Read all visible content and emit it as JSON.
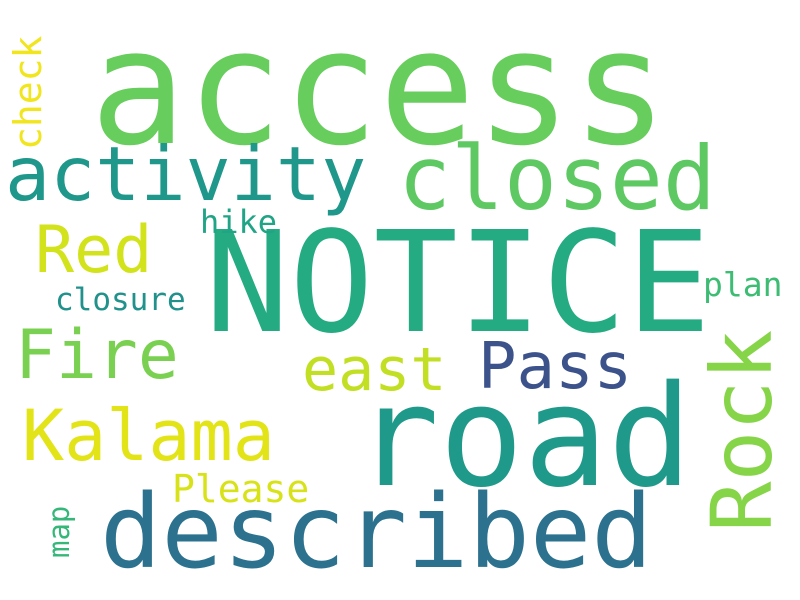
{
  "words": {
    "access": {
      "text": "access",
      "color": "#67cd5c"
    },
    "notice": {
      "text": "NOTICE",
      "color": "#25ab82"
    },
    "road": {
      "text": "road",
      "color": "#1f9a8a"
    },
    "described": {
      "text": "described",
      "color": "#2c728e"
    },
    "closed": {
      "text": "closed",
      "color": "#5ec962"
    },
    "activity": {
      "text": "activity",
      "color": "#1f988b"
    },
    "fire": {
      "text": "Fire",
      "color": "#7ad151"
    },
    "kalama": {
      "text": "Kalama",
      "color": "#e2e418"
    },
    "red": {
      "text": "Red",
      "color": "#d2e21b"
    },
    "east": {
      "text": "east",
      "color": "#c2df23"
    },
    "pass": {
      "text": "Pass",
      "color": "#3b528b"
    },
    "rock": {
      "text": "Rock",
      "color": "#86d549"
    },
    "please": {
      "text": "Please",
      "color": "#d8e219"
    },
    "closure": {
      "text": "closure",
      "color": "#21918c"
    },
    "hike": {
      "text": "hike",
      "color": "#20a486"
    },
    "plan": {
      "text": "plan",
      "color": "#3dbc74"
    },
    "check": {
      "text": "check",
      "color": "#f1e51d"
    },
    "map": {
      "text": "map",
      "color": "#35b779"
    }
  }
}
